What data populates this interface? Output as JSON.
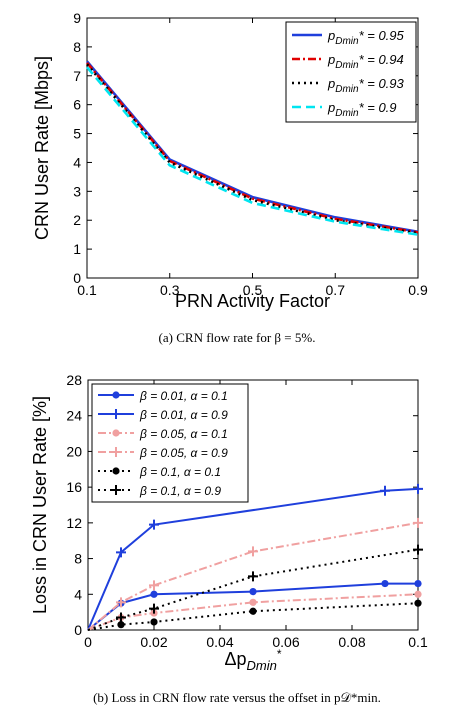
{
  "colors": {
    "blue": "#1f3fdc",
    "red": "#e00000",
    "black": "#000000",
    "cyan": "#00e5f0",
    "pink": "#f0a0a0"
  },
  "captions": {
    "a": "(a) CRN flow rate for β = 5%.",
    "b": "(b) Loss in CRN flow rate versus the offset in p𝒟*min."
  },
  "chart_data": [
    {
      "type": "line",
      "xlabel": "PRN Activity Factor",
      "ylabel": "CRN User Rate [Mbps]",
      "xlim": [
        0.1,
        0.9
      ],
      "ylim": [
        0,
        9
      ],
      "xticks": [
        "0.1",
        "0.3",
        "0.5",
        "0.7",
        "0.9"
      ],
      "yticks": [
        "0",
        "1",
        "2",
        "3",
        "4",
        "5",
        "6",
        "7",
        "8",
        "9"
      ],
      "grid": false,
      "legend_position": "top-right",
      "x": [
        0.1,
        0.3,
        0.5,
        0.7,
        0.9
      ],
      "series": [
        {
          "name": "p",
          "name_sub": "Dmin",
          "name_tail": "* = 0.95",
          "color": "#1f3fdc",
          "dash": "solid",
          "values": [
            7.5,
            4.1,
            2.8,
            2.1,
            1.6
          ]
        },
        {
          "name": "p",
          "name_sub": "Dmin",
          "name_tail": "* = 0.94",
          "color": "#e00000",
          "dash": "dashdot",
          "values": [
            7.45,
            4.05,
            2.75,
            2.05,
            1.58
          ]
        },
        {
          "name": "p",
          "name_sub": "Dmin",
          "name_tail": "* = 0.93",
          "color": "#000000",
          "dash": "dotted",
          "values": [
            7.4,
            4.0,
            2.7,
            2.0,
            1.55
          ]
        },
        {
          "name": "p",
          "name_sub": "Dmin",
          "name_tail": "* = 0.9",
          "color": "#00e5f0",
          "dash": "dashed",
          "values": [
            7.3,
            3.9,
            2.6,
            1.95,
            1.5
          ]
        }
      ]
    },
    {
      "type": "line",
      "xlabel": "Δp",
      "xlabel_sub": "Dmin",
      "xlabel_sup": "*",
      "ylabel": "Loss in CRN User Rate [%]",
      "xlim": [
        0,
        0.1
      ],
      "ylim": [
        0,
        28
      ],
      "xticks": [
        "0",
        "0.02",
        "0.04",
        "0.06",
        "0.08",
        "0.1"
      ],
      "yticks": [
        "0",
        "4",
        "8",
        "12",
        "16",
        "20",
        "24",
        "28"
      ],
      "grid": false,
      "legend_position": "top-left",
      "x": [
        0,
        0.01,
        0.02,
        0.05,
        0.09,
        0.1
      ],
      "series": [
        {
          "name": "β = 0.01, α  = 0.1",
          "color": "#1f3fdc",
          "dash": "solid",
          "marker": "dot",
          "values": [
            0,
            3.0,
            4.0,
            4.3,
            5.2,
            5.2
          ]
        },
        {
          "name": "β = 0.01, α = 0.9",
          "color": "#1f3fdc",
          "dash": "solid",
          "marker": "plus",
          "values": [
            0,
            8.7,
            11.8,
            null,
            15.6,
            15.8
          ]
        },
        {
          "name": "β = 0.05, α  = 0.1",
          "color": "#f0a0a0",
          "dash": "dashdot",
          "marker": "dot",
          "values": [
            0,
            1.4,
            1.9,
            3.1,
            null,
            4.0
          ]
        },
        {
          "name": "β = 0.05, α = 0.9",
          "color": "#f0a0a0",
          "dash": "dashdot",
          "marker": "plus",
          "values": [
            0,
            3.1,
            5.0,
            8.8,
            null,
            12.0
          ]
        },
        {
          "name": "β = 0.1, α  = 0.1",
          "color": "#000000",
          "dash": "dotted",
          "marker": "dot",
          "values": [
            0,
            0.6,
            0.9,
            2.1,
            null,
            3.0
          ]
        },
        {
          "name": "β = 0.1, α = 0.9",
          "color": "#000000",
          "dash": "dotted",
          "marker": "plus",
          "values": [
            0,
            1.4,
            2.4,
            6.0,
            null,
            9.0
          ]
        }
      ]
    }
  ]
}
